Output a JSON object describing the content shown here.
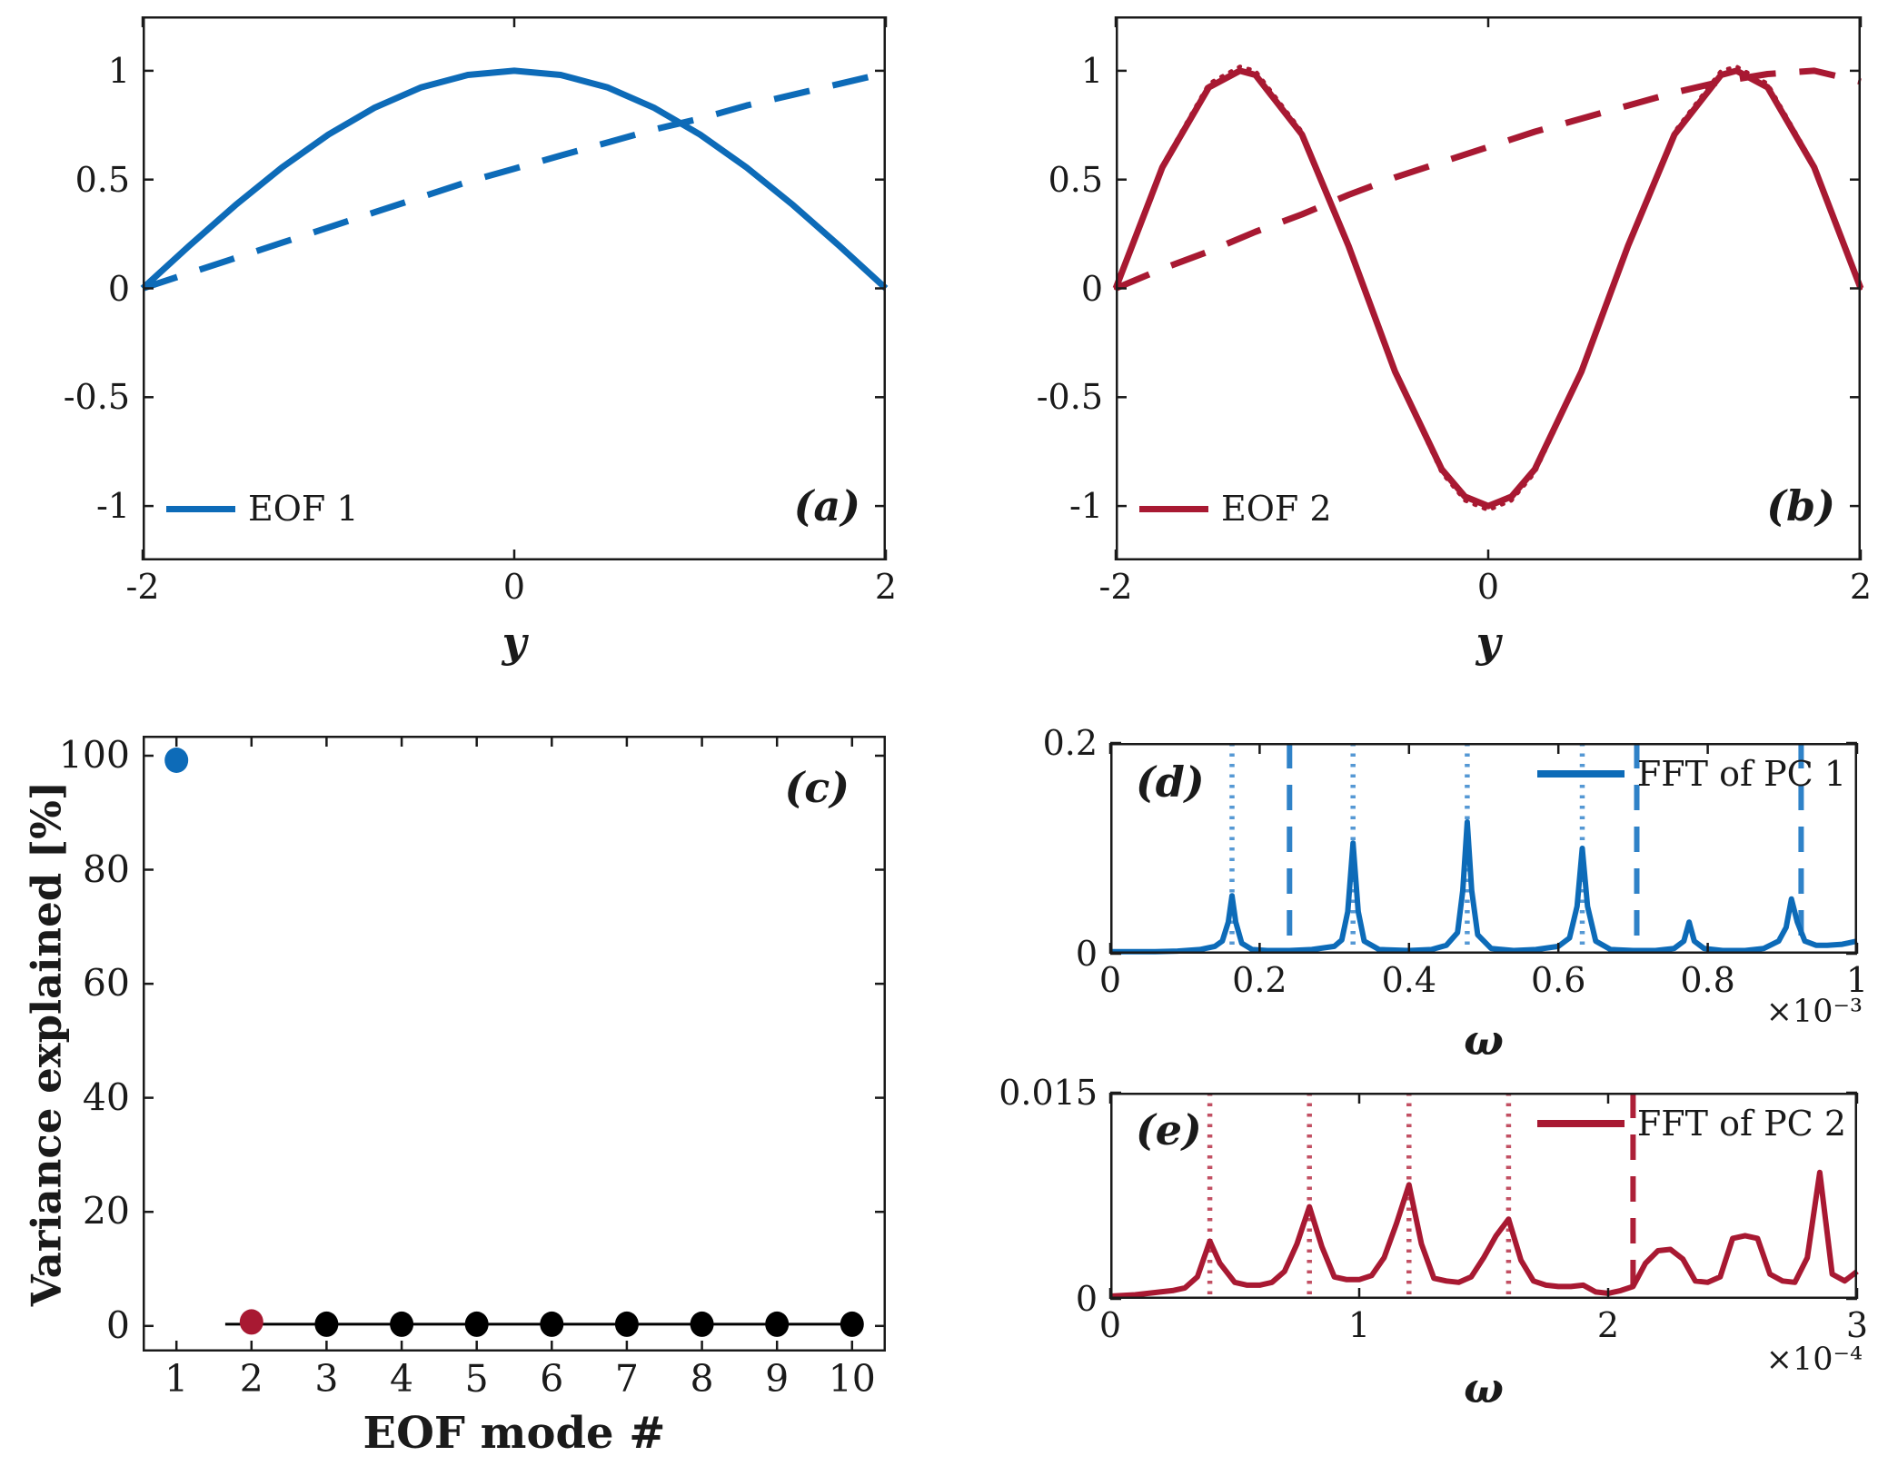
{
  "figure": {
    "colors": {
      "blue": "#0D6BB8",
      "light_blue": "#5598D4",
      "mid_blue": "#2F82C8",
      "red": "#A81932",
      "light_red": "#C25063",
      "dark_red_dash": "#AD2038",
      "axis": "#1a1a1a",
      "marker_black": "#000000"
    },
    "panels": {
      "a": {
        "label": "(a)",
        "legend": "EOF 1",
        "xlabel": "y"
      },
      "b": {
        "label": "(b)",
        "legend": "EOF 2",
        "xlabel": "y"
      },
      "c": {
        "label": "(c)",
        "xlabel": "EOF mode #",
        "ylabel": "Variance explained [%]"
      },
      "d": {
        "label": "(d)",
        "legend": "FFT of PC 1",
        "xlabel": "ω",
        "scale_label": "×10⁻³"
      },
      "e": {
        "label": "(e)",
        "legend": "FFT of PC 2",
        "xlabel": "ω",
        "scale_label": "×10⁻⁴"
      }
    }
  },
  "chart_data": [
    {
      "id": "a",
      "type": "line",
      "panel_label": "(a)",
      "xlabel": "y",
      "xlim": [
        -2,
        2
      ],
      "ylim": [
        -1.25,
        1.25
      ],
      "xticks": [
        -2,
        0,
        2
      ],
      "xtick_labels": [
        "-2",
        "0",
        "2"
      ],
      "yticks": [
        -1,
        -0.5,
        0,
        0.5,
        1
      ],
      "ytick_labels": [
        "-1",
        "-0.5",
        "0",
        "0.5",
        "1"
      ],
      "legend": [
        {
          "label": "EOF 1"
        }
      ],
      "series": [
        {
          "id": "eof1-solid-curve",
          "style": "solid",
          "color": "#0D6BB8",
          "width": 7,
          "x": [
            -2,
            -1.75,
            -1.5,
            -1.25,
            -1,
            -0.75,
            -0.5,
            -0.25,
            0,
            0.25,
            0.5,
            0.75,
            1,
            1.25,
            1.5,
            1.75,
            2
          ],
          "y": [
            0,
            0.195,
            0.383,
            0.556,
            0.707,
            0.831,
            0.924,
            0.981,
            1,
            0.981,
            0.924,
            0.831,
            0.707,
            0.556,
            0.383,
            0.195,
            0
          ]
        },
        {
          "id": "pc1-dashed-curve",
          "style": "dashed",
          "color": "#0D6BB8",
          "width": 7,
          "x": [
            -2,
            -1.75,
            -1.5,
            -1.25,
            -1,
            -0.75,
            -0.5,
            -0.25,
            0,
            0.25,
            0.5,
            0.75,
            1,
            1.25,
            1.5,
            1.75,
            2
          ],
          "y": [
            0,
            0.07,
            0.14,
            0.21,
            0.28,
            0.35,
            0.42,
            0.49,
            0.55,
            0.61,
            0.67,
            0.73,
            0.78,
            0.84,
            0.89,
            0.94,
            0.99
          ]
        }
      ]
    },
    {
      "id": "b",
      "type": "line",
      "panel_label": "(b)",
      "xlabel": "y",
      "xlim": [
        -2,
        2
      ],
      "ylim": [
        -1.25,
        1.25
      ],
      "xticks": [
        -2,
        0,
        2
      ],
      "xtick_labels": [
        "-2",
        "0",
        "2"
      ],
      "yticks": [
        -1,
        -0.5,
        0,
        0.5,
        1
      ],
      "ytick_labels": [
        "-1",
        "-0.5",
        "0",
        "0.5",
        "1"
      ],
      "legend": [
        {
          "label": "EOF 2"
        }
      ],
      "series": [
        {
          "id": "eof2-analytic-dotted",
          "style": "dotted",
          "color": "#A81932",
          "width": 4,
          "x": [
            -2,
            -1.75,
            -1.5,
            -1.333,
            -1.25,
            -1,
            -0.75,
            -0.5,
            -0.25,
            -0.125,
            0,
            0.125,
            0.25,
            0.5,
            0.75,
            1,
            1.25,
            1.333,
            1.5,
            1.75,
            2
          ],
          "y": [
            0,
            0.567,
            0.942,
            1.02,
            1.001,
            0.721,
            0.199,
            -0.391,
            -0.848,
            -0.976,
            -1.02,
            -0.976,
            -0.848,
            -0.391,
            0.199,
            0.721,
            1.001,
            1.02,
            0.942,
            0.567,
            0
          ]
        },
        {
          "id": "eof2-solid-curve",
          "style": "solid",
          "color": "#A81932",
          "width": 7,
          "x": [
            -2,
            -1.75,
            -1.5,
            -1.333,
            -1.25,
            -1,
            -0.75,
            -0.5,
            -0.25,
            -0.125,
            0,
            0.125,
            0.25,
            0.5,
            0.75,
            1,
            1.25,
            1.333,
            1.5,
            1.75,
            2
          ],
          "y": [
            0,
            0.556,
            0.924,
            1,
            0.981,
            0.707,
            0.195,
            -0.383,
            -0.831,
            -0.957,
            -1,
            -0.957,
            -0.831,
            -0.383,
            0.195,
            0.707,
            0.981,
            1,
            0.924,
            0.556,
            0
          ]
        },
        {
          "id": "pc2-dashed-curve",
          "style": "dashed",
          "color": "#A81932",
          "width": 7,
          "x": [
            -2,
            -1.75,
            -1.5,
            -1.25,
            -1,
            -0.75,
            -0.5,
            -0.25,
            0,
            0.25,
            0.5,
            0.75,
            1,
            1.25,
            1.5,
            1.75,
            2
          ],
          "y": [
            0,
            0.09,
            0.17,
            0.26,
            0.34,
            0.43,
            0.51,
            0.58,
            0.65,
            0.72,
            0.78,
            0.84,
            0.9,
            0.95,
            0.985,
            1,
            0.95
          ]
        }
      ]
    },
    {
      "id": "c",
      "type": "scatter",
      "panel_label": "(c)",
      "xlabel": "EOF mode #",
      "ylabel": "Variance explained [%]",
      "xlim": [
        0.55,
        10.45
      ],
      "ylim": [
        -4.5,
        103.5
      ],
      "xticks": [
        1,
        2,
        3,
        4,
        5,
        6,
        7,
        8,
        9,
        10
      ],
      "xtick_labels": [
        "1",
        "2",
        "3",
        "4",
        "5",
        "6",
        "7",
        "8",
        "9",
        "10"
      ],
      "yticks": [
        0,
        20,
        40,
        60,
        80,
        100
      ],
      "ytick_labels": [
        "0",
        "20",
        "40",
        "60",
        "80",
        "100"
      ],
      "line": {
        "x": [
          1.65,
          2,
          3,
          4,
          5,
          6,
          7,
          8,
          9,
          10
        ],
        "y": [
          0.3,
          0.3,
          0.3,
          0.3,
          0.3,
          0.3,
          0.3,
          0.3,
          0.3,
          0.3
        ]
      },
      "points": [
        {
          "x": 1,
          "y": 99.2,
          "color": "#0D6BB8"
        },
        {
          "x": 2,
          "y": 0.7,
          "color": "#A81932"
        },
        {
          "x": 3,
          "y": 0.3,
          "color": "#000000"
        },
        {
          "x": 4,
          "y": 0.3,
          "color": "#000000"
        },
        {
          "x": 5,
          "y": 0.3,
          "color": "#000000"
        },
        {
          "x": 6,
          "y": 0.3,
          "color": "#000000"
        },
        {
          "x": 7,
          "y": 0.3,
          "color": "#000000"
        },
        {
          "x": 8,
          "y": 0.3,
          "color": "#000000"
        },
        {
          "x": 9,
          "y": 0.3,
          "color": "#000000"
        },
        {
          "x": 10,
          "y": 0.3,
          "color": "#000000"
        }
      ]
    },
    {
      "id": "d",
      "type": "line",
      "panel_label": "(d)",
      "xlabel": "ω",
      "scale_label": "×10⁻³",
      "x_units": "1e-3",
      "xlim": [
        0,
        1
      ],
      "ylim": [
        0,
        0.2
      ],
      "xticks": [
        0,
        0.2,
        0.4,
        0.6,
        0.8,
        1
      ],
      "xtick_labels": [
        "0",
        "0.2",
        "0.4",
        "0.6",
        "0.8",
        "1"
      ],
      "yticks": [
        0,
        0.2
      ],
      "ytick_labels": [
        "0",
        "0.2"
      ],
      "legend": [
        {
          "label": "FFT of PC 1"
        }
      ],
      "vlines": [
        {
          "x": 0.163,
          "style": "dotted",
          "color": "#5598D4"
        },
        {
          "x": 0.24,
          "style": "dashed",
          "color": "#2F82C8"
        },
        {
          "x": 0.325,
          "style": "dotted",
          "color": "#5598D4"
        },
        {
          "x": 0.478,
          "style": "dotted",
          "color": "#5598D4"
        },
        {
          "x": 0.632,
          "style": "dotted",
          "color": "#5598D4"
        },
        {
          "x": 0.705,
          "style": "dashed",
          "color": "#2F82C8"
        },
        {
          "x": 0.925,
          "style": "dashed",
          "color": "#2F82C8"
        }
      ],
      "series": [
        {
          "id": "fft-pc1-curve",
          "style": "solid",
          "color": "#0D6BB8",
          "width": 6,
          "x": [
            0,
            0.03,
            0.06,
            0.09,
            0.12,
            0.14,
            0.15,
            0.158,
            0.163,
            0.168,
            0.176,
            0.19,
            0.21,
            0.24,
            0.27,
            0.3,
            0.31,
            0.318,
            0.325,
            0.332,
            0.34,
            0.36,
            0.4,
            0.43,
            0.45,
            0.465,
            0.472,
            0.478,
            0.484,
            0.492,
            0.51,
            0.54,
            0.57,
            0.6,
            0.615,
            0.625,
            0.632,
            0.639,
            0.65,
            0.67,
            0.7,
            0.73,
            0.755,
            0.768,
            0.775,
            0.782,
            0.795,
            0.82,
            0.85,
            0.875,
            0.895,
            0.905,
            0.912,
            0.92,
            0.93,
            0.945,
            0.96,
            0.98,
            1.0
          ],
          "y": [
            0.002,
            0.002,
            0.002,
            0.0025,
            0.004,
            0.007,
            0.012,
            0.03,
            0.055,
            0.03,
            0.01,
            0.004,
            0.003,
            0.003,
            0.004,
            0.007,
            0.013,
            0.04,
            0.105,
            0.04,
            0.012,
            0.004,
            0.003,
            0.004,
            0.008,
            0.02,
            0.06,
            0.125,
            0.06,
            0.018,
            0.005,
            0.003,
            0.004,
            0.007,
            0.015,
            0.045,
            0.1,
            0.045,
            0.012,
            0.004,
            0.003,
            0.003,
            0.005,
            0.012,
            0.03,
            0.012,
            0.005,
            0.003,
            0.003,
            0.005,
            0.012,
            0.025,
            0.052,
            0.03,
            0.012,
            0.008,
            0.008,
            0.009,
            0.012
          ]
        }
      ]
    },
    {
      "id": "e",
      "type": "line",
      "panel_label": "(e)",
      "xlabel": "ω",
      "scale_label": "×10⁻⁴",
      "x_units": "1e-4",
      "xlim": [
        0,
        3
      ],
      "ylim": [
        0,
        0.015
      ],
      "xticks": [
        0,
        1,
        2,
        3
      ],
      "xtick_labels": [
        "0",
        "1",
        "2",
        "3"
      ],
      "yticks": [
        0,
        0.015
      ],
      "ytick_labels": [
        "0",
        "0.015"
      ],
      "legend": [
        {
          "label": "FFT of PC 2"
        }
      ],
      "vlines": [
        {
          "x": 0.4,
          "style": "dotted",
          "color": "#C25063"
        },
        {
          "x": 0.8,
          "style": "dotted",
          "color": "#C25063"
        },
        {
          "x": 1.2,
          "style": "dotted",
          "color": "#C25063"
        },
        {
          "x": 1.6,
          "style": "dotted",
          "color": "#C25063"
        },
        {
          "x": 2.1,
          "style": "dashed",
          "color": "#AD2038"
        }
      ],
      "series": [
        {
          "id": "fft-pc2-curve",
          "style": "solid",
          "color": "#A81932",
          "width": 6,
          "x": [
            0,
            0.1,
            0.2,
            0.25,
            0.3,
            0.35,
            0.4,
            0.44,
            0.5,
            0.55,
            0.6,
            0.65,
            0.7,
            0.75,
            0.8,
            0.85,
            0.9,
            0.95,
            1.0,
            1.05,
            1.1,
            1.15,
            1.2,
            1.25,
            1.3,
            1.35,
            1.4,
            1.45,
            1.5,
            1.55,
            1.6,
            1.65,
            1.7,
            1.75,
            1.8,
            1.85,
            1.9,
            1.95,
            2.0,
            2.05,
            2.1,
            2.15,
            2.2,
            2.25,
            2.3,
            2.35,
            2.4,
            2.45,
            2.5,
            2.55,
            2.6,
            2.65,
            2.7,
            2.75,
            2.8,
            2.85,
            2.9,
            2.95,
            3.0
          ],
          "y": [
            0.0002,
            0.0003,
            0.0005,
            0.0006,
            0.0008,
            0.0016,
            0.0042,
            0.0026,
            0.0012,
            0.001,
            0.001,
            0.0012,
            0.002,
            0.004,
            0.0067,
            0.0038,
            0.0016,
            0.0014,
            0.0014,
            0.0017,
            0.003,
            0.0055,
            0.0083,
            0.004,
            0.0015,
            0.0013,
            0.0012,
            0.0016,
            0.003,
            0.0046,
            0.0058,
            0.0028,
            0.0013,
            0.001,
            0.0009,
            0.0009,
            0.001,
            0.0005,
            0.0004,
            0.0006,
            0.0009,
            0.0026,
            0.0035,
            0.0036,
            0.0029,
            0.0013,
            0.0012,
            0.0016,
            0.0044,
            0.0046,
            0.0044,
            0.0018,
            0.0013,
            0.0012,
            0.003,
            0.0092,
            0.0018,
            0.0013,
            0.002
          ]
        }
      ]
    }
  ]
}
